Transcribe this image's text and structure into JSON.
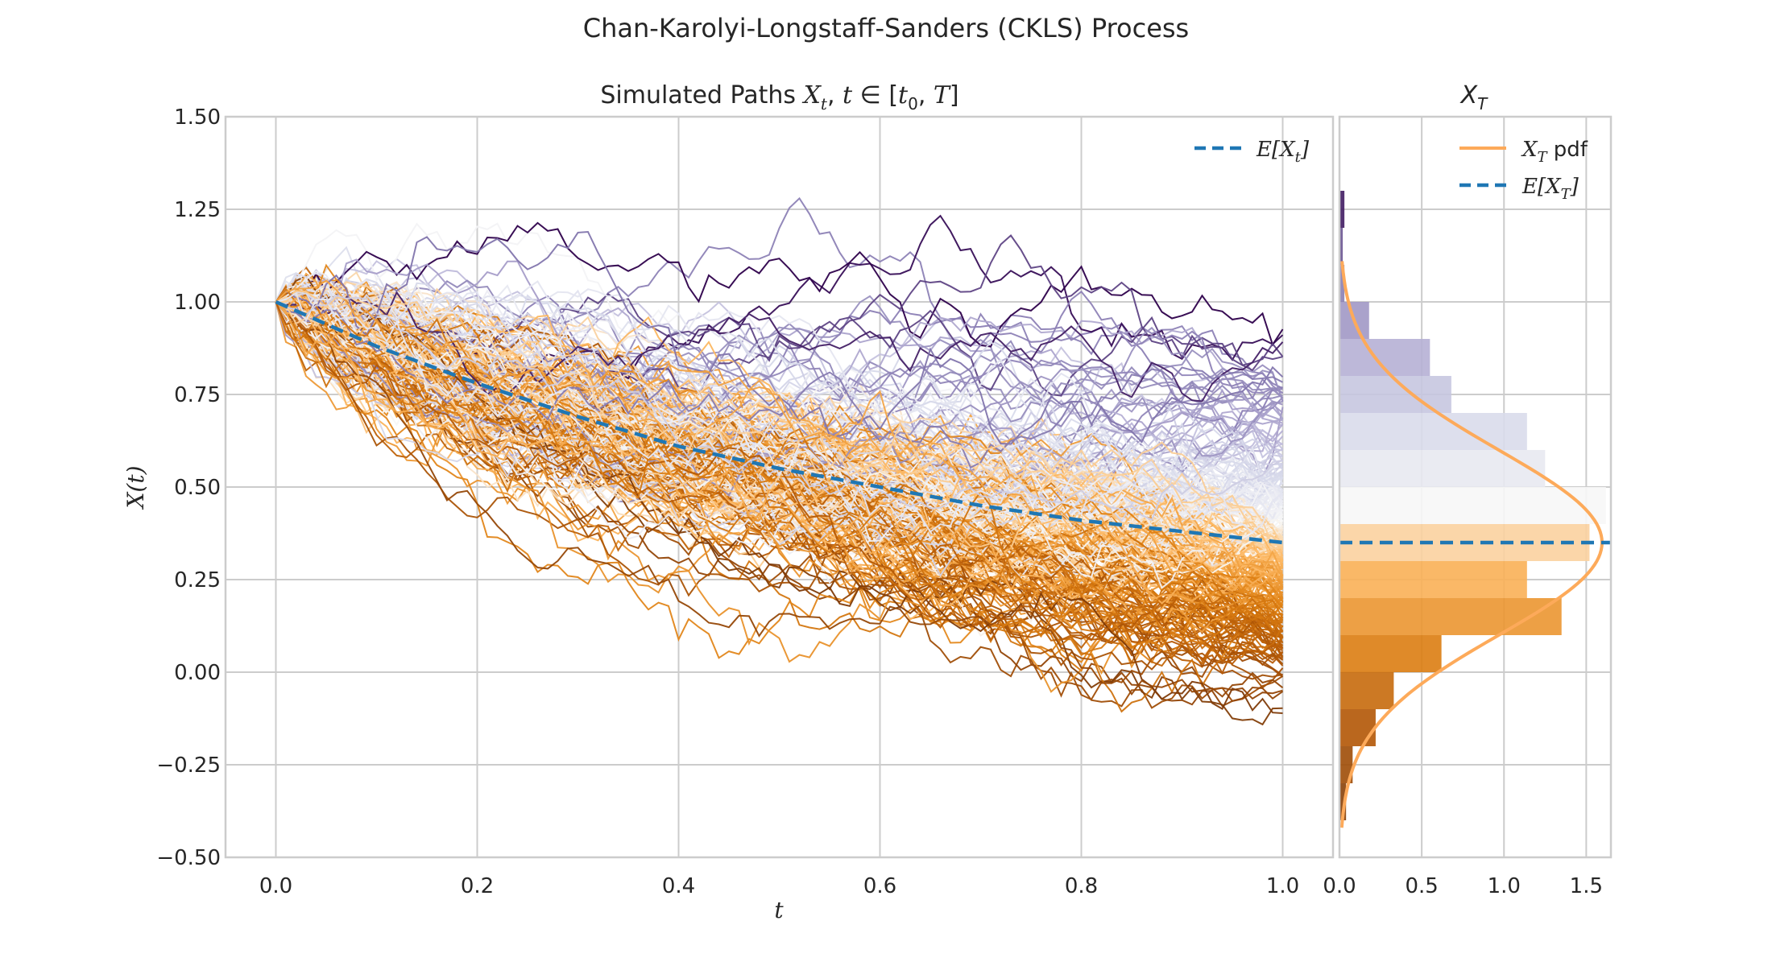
{
  "figure": {
    "suptitle": "Chan-Karolyi-Longstaff-Sanders (CKLS) Process"
  },
  "colors": {
    "expectation": "#1f77b4",
    "pdf": "#fdaa5a",
    "paths_low": "#7f3b08",
    "paths_mid": "#f2f2f2",
    "paths_high": "#2d004b"
  },
  "chart_data": [
    {
      "type": "line",
      "title": "Simulated Paths X_t, t ∈ [t_0, T]",
      "xlabel": "t",
      "ylabel": "X(t)",
      "xlim": [
        -0.05,
        1.05
      ],
      "ylim": [
        -0.5,
        1.5
      ],
      "xticks": [
        "0.0",
        "0.2",
        "0.4",
        "0.6",
        "0.8",
        "1.0"
      ],
      "yticks": [
        "1.50",
        "1.25",
        "1.00",
        "0.75",
        "0.50",
        "0.25",
        "0.00",
        "−0.25",
        "−0.50"
      ],
      "grid": true,
      "legend": {
        "placement": "top-right",
        "entries": [
          "E[X_t]"
        ]
      },
      "paths": {
        "count": 300,
        "start_value": 1.0,
        "t_start": 0.0,
        "t_end": 1.0,
        "colormap": "PuOr (colored by terminal value)"
      },
      "series": [
        {
          "name": "E[X_t]",
          "style": "dashed",
          "x": [
            0.0,
            0.1,
            0.2,
            0.3,
            0.4,
            0.5,
            0.6,
            0.7,
            0.8,
            0.9,
            1.0
          ],
          "values": [
            1.0,
            0.88,
            0.78,
            0.69,
            0.61,
            0.55,
            0.5,
            0.45,
            0.41,
            0.38,
            0.35
          ]
        }
      ]
    },
    {
      "type": "bar",
      "orientation": "horizontal",
      "title": "X_T",
      "xlim": [
        0,
        1.65
      ],
      "ylim": [
        -0.5,
        1.5
      ],
      "xticks": [
        "0.0",
        "0.5",
        "1.0",
        "1.5"
      ],
      "grid": true,
      "legend": {
        "placement": "top-right",
        "entries": [
          "X_T pdf",
          "E[X_T]"
        ]
      },
      "bins": [
        -0.4,
        -0.3,
        -0.2,
        -0.1,
        0.0,
        0.1,
        0.2,
        0.3,
        0.4,
        0.5,
        0.6,
        0.7,
        0.8,
        0.9,
        1.0,
        1.1,
        1.2,
        1.3
      ],
      "density": [
        0.04,
        0.08,
        0.22,
        0.33,
        0.62,
        1.35,
        1.14,
        1.52,
        1.62,
        1.25,
        1.14,
        0.68,
        0.55,
        0.18,
        0.03,
        0.02,
        0.03
      ],
      "pdf": {
        "name": "X_T pdf",
        "mean": 0.35,
        "std": 0.25
      },
      "expectation": {
        "name": "E[X_T]",
        "value": 0.35
      }
    }
  ]
}
